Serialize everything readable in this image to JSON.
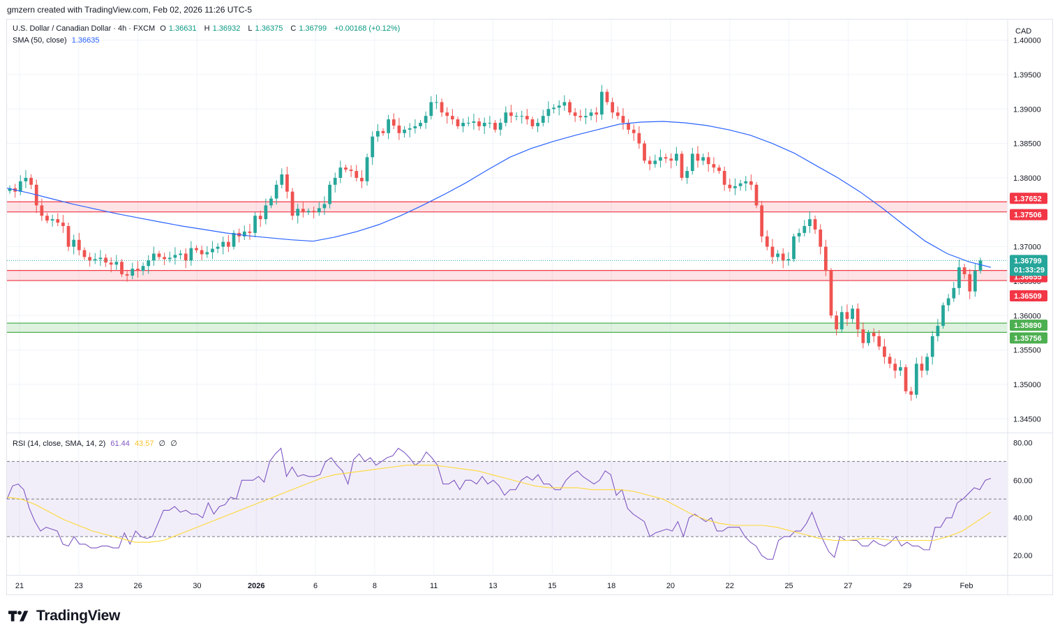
{
  "caption": "gmzern created with TradingView.com, Feb 02, 2026 11:26 UTC-5",
  "brand": "TradingView",
  "currency": "CAD",
  "legend": {
    "symbol": "U.S. Dollar / Canadian Dollar · 4h · FXCM",
    "open_label": "O",
    "open": "1.36631",
    "high_label": "H",
    "high": "1.36932",
    "low_label": "L",
    "low": "1.36375",
    "close_label": "C",
    "close": "1.36799",
    "change": "+0.00168 (+0.12%)",
    "sma_label": "SMA (50, close)",
    "sma_value": "1.36635",
    "rsi_label": "RSI (14, close, SMA, 14, 2)",
    "rsi_value": "61.44",
    "rsi_ma": "43.57",
    "rsi_extra1": "∅",
    "rsi_extra2": "∅"
  },
  "colors": {
    "up": "#26a69a",
    "down": "#ef5350",
    "sma": "#2962ff",
    "rsi": "#7e57c2",
    "rsi_ma": "#fdd835",
    "resistance": "#f23645",
    "support": "#4caf50",
    "grid": "#f0f3fa"
  },
  "chart_data": {
    "type": "candlestick",
    "price_axis": {
      "min": 1.343,
      "max": 1.403,
      "ticks": [
        "1.40000",
        "1.39500",
        "1.39000",
        "1.38500",
        "1.38000",
        "1.37500",
        "1.37000",
        "1.36500",
        "1.36000",
        "1.35500",
        "1.35000",
        "1.34500"
      ]
    },
    "x_labels": [
      "21",
      "23",
      "26",
      "30",
      "2026",
      "6",
      "8",
      "11",
      "13",
      "15",
      "18",
      "20",
      "22",
      "25",
      "27",
      "29",
      "Feb"
    ],
    "zones": [
      {
        "top": 1.37652,
        "bottom": 1.37506,
        "kind": "resistance",
        "top_label": "1.37652",
        "bottom_label": "1.37506"
      },
      {
        "top": 1.36655,
        "bottom": 1.36509,
        "kind": "resistance",
        "top_label": "1.36655",
        "bottom_label": "1.36509"
      },
      {
        "top": 1.3589,
        "bottom": 1.35756,
        "kind": "support",
        "top_label": "1.35890",
        "bottom_label": "1.35756"
      }
    ],
    "current_price": {
      "value": 1.36799,
      "label": "1.36799",
      "countdown": "01:33:29"
    },
    "close_series": [
      1.3785,
      1.378,
      1.3795,
      1.38,
      1.379,
      1.376,
      1.3745,
      1.3738,
      1.374,
      1.3735,
      1.373,
      1.37,
      1.371,
      1.3695,
      1.3685,
      1.368,
      1.3682,
      1.3684,
      1.3677,
      1.3674,
      1.3678,
      1.366,
      1.3658,
      1.3668,
      1.3665,
      1.3672,
      1.368,
      1.369,
      1.3685,
      1.3682,
      1.3684,
      1.3688,
      1.369,
      1.368,
      1.3698,
      1.3695,
      1.3689,
      1.3692,
      1.3697,
      1.37,
      1.3707,
      1.37,
      1.372,
      1.3715,
      1.3722,
      1.372,
      1.3745,
      1.374,
      1.376,
      1.377,
      1.379,
      1.3805,
      1.378,
      1.3745,
      1.3755,
      1.375,
      1.3752,
      1.375,
      1.3756,
      1.3762,
      1.379,
      1.38,
      1.3815,
      1.3812,
      1.381,
      1.38,
      1.3795,
      1.383,
      1.386,
      1.3868,
      1.3865,
      1.3885,
      1.3876,
      1.3865,
      1.387,
      1.3872,
      1.3875,
      1.388,
      1.389,
      1.391,
      1.391,
      1.3895,
      1.389,
      1.3885,
      1.3875,
      1.388,
      1.388,
      1.3882,
      1.3875,
      1.388,
      1.388,
      1.387,
      1.388,
      1.3895,
      1.389,
      1.389,
      1.389,
      1.3885,
      1.3875,
      1.388,
      1.389,
      1.39,
      1.3902,
      1.3905,
      1.391,
      1.3895,
      1.389,
      1.3888,
      1.389,
      1.3895,
      1.3892,
      1.3925,
      1.391,
      1.3895,
      1.389,
      1.388,
      1.387,
      1.3865,
      1.385,
      1.3825,
      1.382,
      1.3825,
      1.383,
      1.3828,
      1.3825,
      1.3835,
      1.38,
      1.381,
      1.3835,
      1.3825,
      1.383,
      1.382,
      1.3815,
      1.381,
      1.379,
      1.3785,
      1.3788,
      1.3792,
      1.3795,
      1.379,
      1.376,
      1.3715,
      1.37,
      1.3685,
      1.369,
      1.368,
      1.3682,
      1.3715,
      1.372,
      1.373,
      1.374,
      1.3725,
      1.37,
      1.3665,
      1.36,
      1.358,
      1.3605,
      1.3595,
      1.361,
      1.358,
      1.356,
      1.3575,
      1.357,
      1.3555,
      1.354,
      1.353,
      1.352,
      1.3525,
      1.349,
      1.3485,
      1.353,
      1.352,
      1.354,
      1.357,
      1.3585,
      1.3615,
      1.3625,
      1.364,
      1.367,
      1.366,
      1.3635,
      1.3665,
      1.368
    ],
    "sma_series": [
      1.3785,
      1.3778,
      1.377,
      1.3762,
      1.3755,
      1.3748,
      1.3742,
      1.3736,
      1.373,
      1.3725,
      1.372,
      1.3716,
      1.3713,
      1.371,
      1.3708,
      1.3714,
      1.3722,
      1.3732,
      1.3745,
      1.376,
      1.3776,
      1.3793,
      1.3812,
      1.383,
      1.3843,
      1.3853,
      1.3862,
      1.387,
      1.3878,
      1.3881,
      1.3882,
      1.388,
      1.3876,
      1.387,
      1.3862,
      1.385,
      1.3836,
      1.3818,
      1.38,
      1.378,
      1.3757,
      1.3732,
      1.3708,
      1.369,
      1.3678,
      1.367
    ],
    "rsi": {
      "axis_ticks": [
        "80.00",
        "60.00",
        "40.00",
        "20.00"
      ],
      "upper": 70,
      "middle": 50,
      "lower": 30,
      "series": [
        50,
        57,
        58,
        55,
        45,
        38,
        33,
        35,
        34,
        33,
        26,
        25,
        30,
        26,
        26,
        24,
        24,
        25,
        25,
        24,
        24,
        32,
        26,
        33,
        30,
        29,
        30,
        37,
        44,
        44,
        46,
        43,
        44,
        42,
        42,
        40,
        48,
        42,
        46,
        47,
        51,
        50,
        60,
        60,
        60,
        62,
        59,
        70,
        74,
        77,
        62,
        67,
        62,
        63,
        62,
        62,
        63,
        70,
        72,
        68,
        65,
        58,
        71,
        74,
        70,
        72,
        68,
        70,
        72,
        73,
        77,
        75,
        72,
        68,
        70,
        75,
        72,
        68,
        58,
        58,
        60,
        55,
        60,
        60,
        58,
        62,
        58,
        60,
        57,
        52,
        55,
        55,
        60,
        62,
        60,
        63,
        58,
        58,
        55,
        55,
        60,
        63,
        65,
        62,
        60,
        58,
        60,
        65,
        63,
        52,
        55,
        45,
        42,
        40,
        38,
        30,
        32,
        33,
        34,
        33,
        38,
        30,
        40,
        42,
        40,
        38,
        40,
        33,
        33,
        35,
        35,
        35,
        30,
        27,
        25,
        20,
        18,
        18,
        28,
        30,
        30,
        33,
        33,
        37,
        43,
        35,
        28,
        22,
        19,
        30,
        28,
        28,
        28,
        25,
        25,
        28,
        26,
        25,
        27,
        30,
        25,
        27,
        25,
        25,
        23,
        23,
        35,
        35,
        40,
        40,
        48,
        50,
        53,
        56,
        55,
        60,
        61
      ],
      "ma_series": [
        51,
        50,
        47,
        43,
        39,
        36,
        33,
        31,
        29,
        27,
        27,
        28,
        31,
        34,
        37,
        40,
        43,
        46,
        49,
        52,
        55,
        58,
        61,
        63,
        64,
        65,
        66,
        67,
        68,
        68,
        68,
        67,
        66,
        65,
        63,
        61,
        59,
        57,
        56,
        56,
        56,
        55,
        55,
        55,
        54,
        52,
        50,
        46,
        42,
        39,
        37,
        36,
        36,
        36,
        35,
        33,
        31,
        29,
        28,
        28,
        29,
        29,
        28,
        28,
        28,
        28,
        30,
        33,
        38,
        43
      ]
    }
  }
}
